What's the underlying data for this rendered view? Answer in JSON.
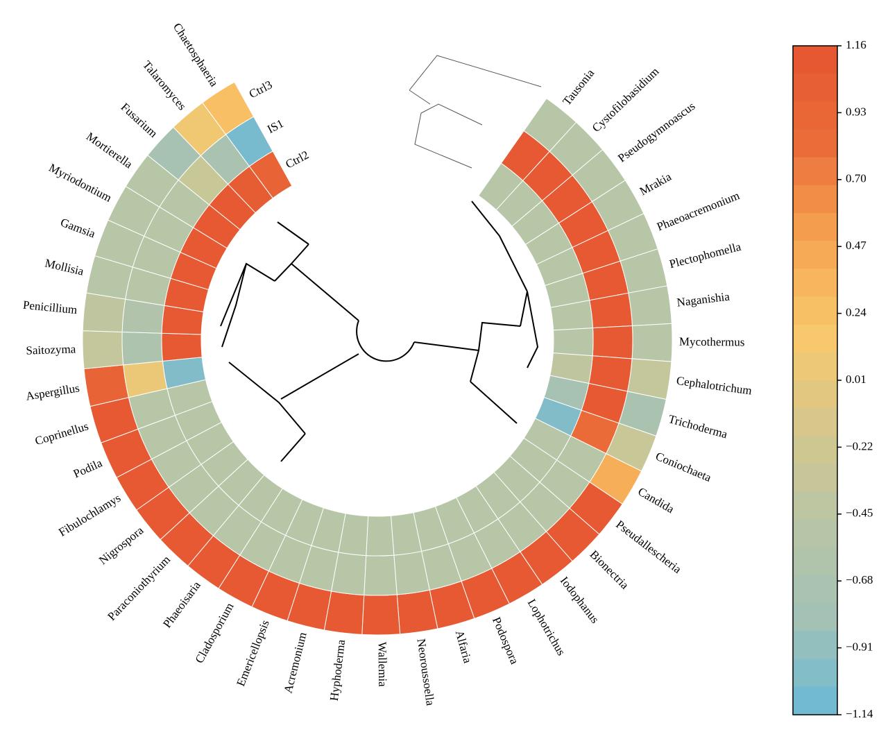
{
  "chart_data": {
    "type": "circular-heatmap",
    "categories": [
      "Tausonia",
      "Cystofilobasidium",
      "Pseudogymnoascus",
      "Mrakia",
      "Phaeoacremonium",
      "Plectophomella",
      "Naganishia",
      "Mycothermus",
      "Cephalotrichum",
      "Trichoderma",
      "Coniochaeta",
      "Candida",
      "Pseudallescheria",
      "Bionectria",
      "Iodophanus",
      "Lophotrichus",
      "Podospora",
      "Alfaria",
      "Neoroussoella",
      "Wallemia",
      "Hyphoderma",
      "Acremonium",
      "Emericellopsis",
      "Cladosporium",
      "Phaeoisaria",
      "Paraconiothyrium",
      "Nigrospora",
      "Fibulochlamys",
      "Podila",
      "Coprinellus",
      "Aspergillus",
      "Saitozyma",
      "Penicillium",
      "Mollisia",
      "Gamsia",
      "Myriodontium",
      "Mortierella",
      "Fusarium",
      "Talaromyces",
      "Chaetosphaeria"
    ],
    "series": [
      {
        "name": "Ctrl3",
        "values": [
          -0.5,
          -0.5,
          -0.5,
          -0.5,
          -0.5,
          -0.5,
          -0.5,
          -0.5,
          -0.35,
          -0.7,
          -0.3,
          0.4,
          1.1,
          1.1,
          1.1,
          1.1,
          1.1,
          1.1,
          1.1,
          1.1,
          1.1,
          1.1,
          1.1,
          1.1,
          1.1,
          1.1,
          1.1,
          1.1,
          1.1,
          1.1,
          0.95,
          -0.35,
          -0.4,
          -0.5,
          -0.5,
          -0.5,
          -0.5,
          -0.75,
          0.1,
          0.25
        ]
      },
      {
        "name": "IS1",
        "values": [
          1.1,
          1.1,
          1.1,
          1.1,
          1.1,
          1.1,
          1.1,
          1.1,
          1.1,
          1.1,
          0.85,
          -0.5,
          -0.5,
          -0.5,
          -0.5,
          -0.5,
          -0.5,
          -0.5,
          -0.5,
          -0.5,
          -0.5,
          -0.5,
          -0.5,
          -0.5,
          -0.5,
          -0.5,
          -0.5,
          -0.5,
          -0.5,
          -0.5,
          0.05,
          -0.65,
          -0.6,
          -0.5,
          -0.5,
          -0.5,
          -0.5,
          -0.3,
          -0.7,
          -1.05
        ]
      },
      {
        "name": "Ctrl2",
        "values": [
          -0.5,
          -0.5,
          -0.5,
          -0.5,
          -0.5,
          -0.5,
          -0.5,
          -0.5,
          -0.4,
          -0.75,
          -1.0,
          -0.5,
          -0.5,
          -0.5,
          -0.5,
          -0.5,
          -0.5,
          -0.5,
          -0.5,
          -0.5,
          -0.5,
          -0.5,
          -0.5,
          -0.5,
          -0.5,
          -0.5,
          -0.5,
          -0.5,
          -0.5,
          -0.5,
          -1.0,
          1.1,
          1.1,
          1.1,
          1.1,
          1.1,
          1.1,
          1.1,
          1.05,
          0.95
        ]
      }
    ],
    "colormap": [
      "#69b9d7",
      "#a3c1b5",
      "#b8c6a6",
      "#d5c78c",
      "#f9c86b",
      "#f5a350",
      "#ea6c39",
      "#e55530"
    ],
    "clim": [
      -1.14,
      1.16
    ],
    "cticks": [
      {
        "value": -1.14,
        "label": "−1.14"
      },
      {
        "value": -0.91,
        "label": "−0.91"
      },
      {
        "value": -0.68,
        "label": "−0.68"
      },
      {
        "value": -0.45,
        "label": "−0.45"
      },
      {
        "value": -0.22,
        "label": "−0.22"
      },
      0.01,
      0.24,
      0.47,
      {
        "value": 0.7,
        "label": "0.70"
      },
      0.93,
      1.16
    ]
  }
}
